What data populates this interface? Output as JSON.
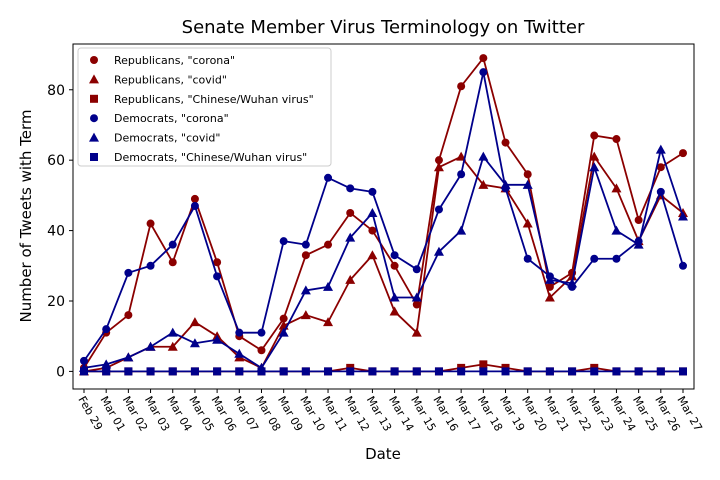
{
  "chart_data": {
    "type": "line",
    "title": "Senate Member Virus Terminology on Twitter",
    "xlabel": "Date",
    "ylabel": "Number of Tweets with Term",
    "ylim": [
      -5,
      93
    ],
    "yticks": [
      0,
      20,
      40,
      60,
      80
    ],
    "legend_position": "top-left",
    "categories": [
      "Feb 29",
      "Mar 01",
      "Mar 02",
      "Mar 03",
      "Mar 04",
      "Mar 05",
      "Mar 06",
      "Mar 07",
      "Mar 08",
      "Mar 09",
      "Mar 10",
      "Mar 11",
      "Mar 12",
      "Mar 13",
      "Mar 14",
      "Mar 15",
      "Mar 16",
      "Mar 17",
      "Mar 18",
      "Mar 19",
      "Mar 20",
      "Mar 21",
      "Mar 22",
      "Mar 23",
      "Mar 24",
      "Mar 25",
      "Mar 26",
      "Mar 27"
    ],
    "series": [
      {
        "name": "Republicans, \"corona\"",
        "color": "#8b0000",
        "marker": "circle",
        "values": [
          1,
          11,
          16,
          42,
          31,
          49,
          31,
          10,
          6,
          15,
          33,
          36,
          45,
          40,
          30,
          19,
          60,
          81,
          89,
          65,
          56,
          24,
          28,
          67,
          66,
          43,
          58,
          62
        ]
      },
      {
        "name": "Republicans, \"covid\"",
        "color": "#8b0000",
        "marker": "triangle",
        "values": [
          0,
          1,
          4,
          7,
          7,
          14,
          10,
          4,
          1,
          13,
          16,
          14,
          26,
          33,
          17,
          11,
          58,
          61,
          53,
          52,
          42,
          21,
          27,
          61,
          52,
          37,
          50,
          45
        ]
      },
      {
        "name": "Republicans, \"Chinese/Wuhan virus\"",
        "color": "#8b0000",
        "marker": "square",
        "values": [
          0,
          0,
          0,
          0,
          0,
          0,
          0,
          0,
          0,
          0,
          0,
          0,
          1,
          0,
          0,
          0,
          0,
          1,
          2,
          1,
          0,
          0,
          0,
          1,
          0,
          0,
          0,
          0
        ]
      },
      {
        "name": "Democrats, \"corona\"",
        "color": "#00008b",
        "marker": "circle",
        "values": [
          3,
          12,
          28,
          30,
          36,
          47,
          27,
          11,
          11,
          37,
          36,
          55,
          52,
          51,
          33,
          29,
          46,
          56,
          85,
          52,
          32,
          27,
          24,
          32,
          32,
          37,
          51,
          30
        ]
      },
      {
        "name": "Democrats, \"covid\"",
        "color": "#00008b",
        "marker": "triangle",
        "values": [
          1,
          2,
          4,
          7,
          11,
          8,
          9,
          5,
          1,
          11,
          23,
          24,
          38,
          45,
          21,
          21,
          34,
          40,
          61,
          53,
          53,
          26,
          25,
          58,
          40,
          36,
          63,
          44
        ]
      },
      {
        "name": "Democrats, \"Chinese/Wuhan virus\"",
        "color": "#00008b",
        "marker": "square",
        "values": [
          0,
          0,
          0,
          0,
          0,
          0,
          0,
          0,
          0,
          0,
          0,
          0,
          0,
          0,
          0,
          0,
          0,
          0,
          0,
          0,
          0,
          0,
          0,
          0,
          0,
          0,
          0,
          0
        ]
      }
    ]
  }
}
